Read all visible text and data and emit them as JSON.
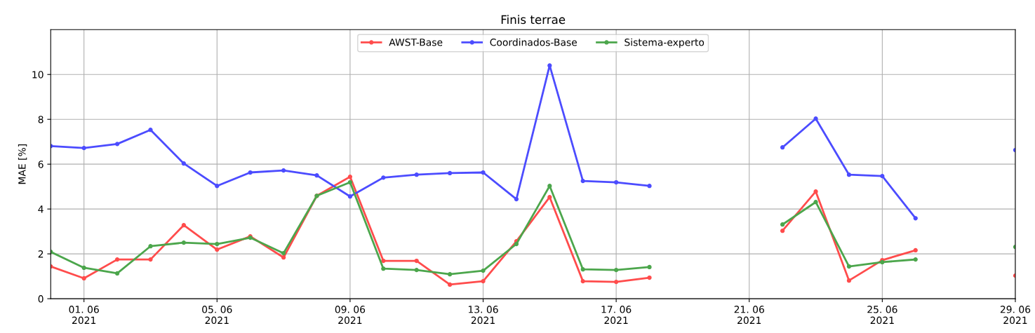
{
  "chart_data": {
    "type": "line",
    "title": "Finis terrae",
    "ylabel": "MAE [%]",
    "x": [
      "2021-05-31",
      "2021-06-01",
      "2021-06-02",
      "2021-06-03",
      "2021-06-04",
      "2021-06-05",
      "2021-06-06",
      "2021-06-07",
      "2021-06-08",
      "2021-06-09",
      "2021-06-10",
      "2021-06-11",
      "2021-06-12",
      "2021-06-13",
      "2021-06-14",
      "2021-06-15",
      "2021-06-16",
      "2021-06-17",
      "2021-06-18",
      "2021-06-19",
      "2021-06-20",
      "2021-06-21",
      "2021-06-22",
      "2021-06-23",
      "2021-06-24",
      "2021-06-25",
      "2021-06-26",
      "2021-06-27",
      "2021-06-28",
      "2021-06-29"
    ],
    "series": [
      {
        "name": "AWST-Base",
        "color": "#ff4c4c",
        "values": [
          1.44,
          0.91,
          1.75,
          1.75,
          3.28,
          2.19,
          2.78,
          1.84,
          4.59,
          5.44,
          1.69,
          1.69,
          0.63,
          0.78,
          2.56,
          4.53,
          0.78,
          0.75,
          0.94,
          null,
          null,
          null,
          3.03,
          4.78,
          0.81,
          1.72,
          2.16,
          null,
          null,
          1.03
        ]
      },
      {
        "name": "Coordinados-Base",
        "color": "#4c4cff",
        "values": [
          6.81,
          6.72,
          6.9,
          7.53,
          6.03,
          5.03,
          5.63,
          5.72,
          5.5,
          4.56,
          5.4,
          5.53,
          5.6,
          5.63,
          4.44,
          10.4,
          5.25,
          5.19,
          5.03,
          null,
          null,
          null,
          6.75,
          8.03,
          5.53,
          5.47,
          3.59,
          null,
          null,
          6.63
        ]
      },
      {
        "name": "Sistema-experto",
        "color": "#4ca64c",
        "values": [
          2.09,
          1.38,
          1.13,
          2.34,
          2.5,
          2.44,
          2.72,
          2.03,
          4.59,
          5.19,
          1.34,
          1.28,
          1.09,
          1.25,
          2.44,
          5.03,
          1.31,
          1.28,
          1.41,
          null,
          null,
          null,
          3.31,
          4.31,
          1.44,
          1.63,
          1.75,
          null,
          null,
          2.31
        ]
      }
    ],
    "xlim": [
      "2021-05-31",
      "2021-06-29"
    ],
    "xticks": [
      {
        "value": "2021-06-01",
        "label": "01. 06\n2021"
      },
      {
        "value": "2021-06-05",
        "label": "05. 06\n2021"
      },
      {
        "value": "2021-06-09",
        "label": "09. 06\n2021"
      },
      {
        "value": "2021-06-13",
        "label": "13. 06\n2021"
      },
      {
        "value": "2021-06-17",
        "label": "17. 06\n2021"
      },
      {
        "value": "2021-06-21",
        "label": "21. 06\n2021"
      },
      {
        "value": "2021-06-25",
        "label": "25. 06\n2021"
      },
      {
        "value": "2021-06-29",
        "label": "29. 06\n2021"
      }
    ],
    "ylim": [
      0,
      12
    ],
    "yticks": [
      0,
      2,
      4,
      6,
      8,
      10
    ],
    "grid": true,
    "legend": "top",
    "marker": "circle",
    "line_style": "solid"
  }
}
